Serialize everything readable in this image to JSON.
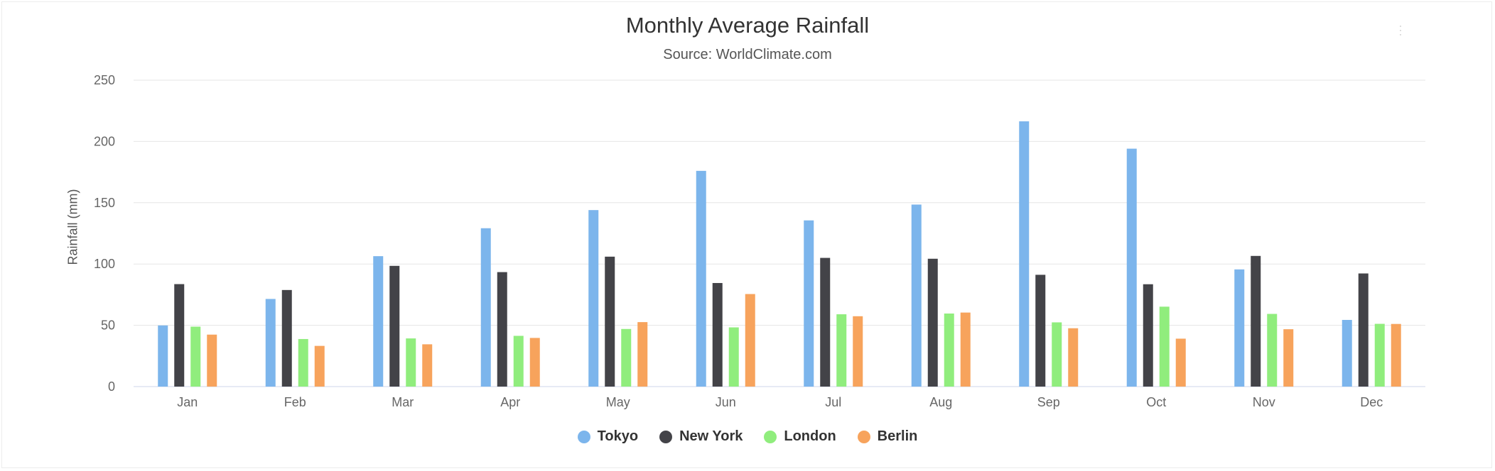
{
  "chart_data": {
    "type": "bar",
    "title": "Monthly Average Rainfall",
    "subtitle": "Source: WorldClimate.com",
    "xlabel": "",
    "ylabel": "Rainfall (mm)",
    "ylim": [
      0,
      250
    ],
    "yticks": [
      "0",
      "50",
      "100",
      "150",
      "200",
      "250"
    ],
    "grid": true,
    "legend_position": "bottom",
    "categories": [
      "Jan",
      "Feb",
      "Mar",
      "Apr",
      "May",
      "Jun",
      "Jul",
      "Aug",
      "Sep",
      "Oct",
      "Nov",
      "Dec"
    ],
    "series": [
      {
        "name": "Tokyo",
        "color": "#7cb5ec",
        "values": [
          49.9,
          71.5,
          106.4,
          129.2,
          144.0,
          176.0,
          135.6,
          148.5,
          216.4,
          194.1,
          95.6,
          54.4
        ]
      },
      {
        "name": "New York",
        "color": "#434348",
        "values": [
          83.6,
          78.8,
          98.5,
          93.4,
          106.0,
          84.5,
          105.0,
          104.3,
          91.2,
          83.5,
          106.6,
          92.3
        ]
      },
      {
        "name": "London",
        "color": "#90ed7d",
        "values": [
          48.9,
          38.8,
          39.3,
          41.4,
          47.0,
          48.3,
          59.0,
          59.6,
          52.4,
          65.2,
          59.3,
          51.2
        ]
      },
      {
        "name": "Berlin",
        "color": "#f7a35c",
        "values": [
          42.4,
          33.2,
          34.5,
          39.7,
          52.6,
          75.5,
          57.4,
          60.4,
          47.6,
          39.1,
          46.8,
          51.1
        ]
      }
    ]
  }
}
